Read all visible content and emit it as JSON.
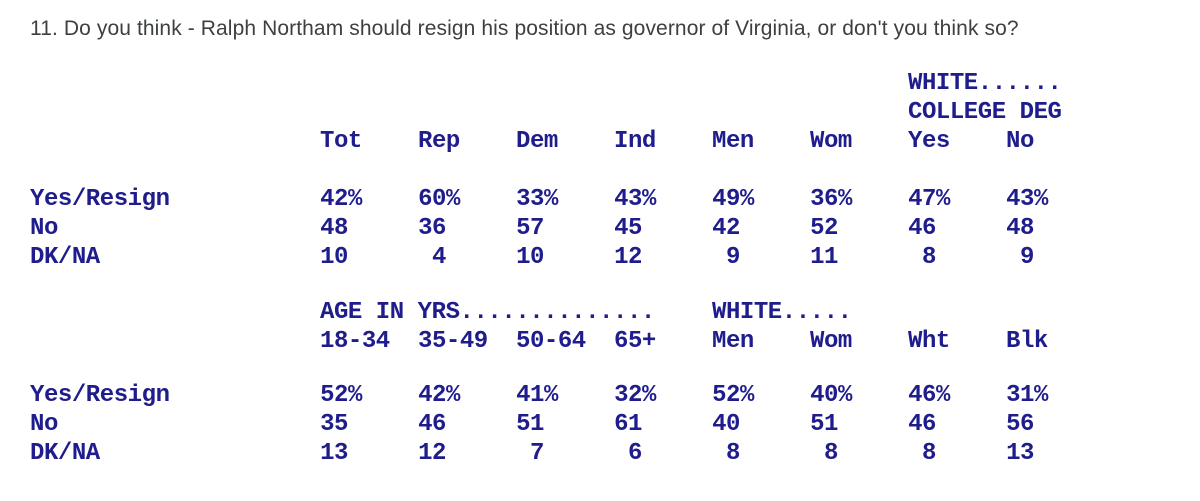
{
  "title": "11. Do you think - Ralph Northam should resign his position as governor of Virginia, or don't you think so?",
  "colors": {
    "table_text": "#1f1c8c",
    "title_text": "#3d4043",
    "background": "#ffffff"
  },
  "blocks": [
    {
      "group_headers": [
        {
          "text": "WHITE......",
          "col": 6,
          "line": 0
        },
        {
          "text": "COLLEGE DEG",
          "col": 6,
          "line": 1
        }
      ],
      "column_headers": [
        "Tot",
        "Rep",
        "Dem",
        "Ind",
        "Men",
        "Wom",
        "Yes",
        "No"
      ],
      "rows": [
        {
          "label": "Yes/Resign",
          "values": [
            "42%",
            "60%",
            "33%",
            "43%",
            "49%",
            "36%",
            "47%",
            "43%"
          ]
        },
        {
          "label": "No",
          "values": [
            "48",
            "36",
            "57",
            "45",
            "42",
            "52",
            "46",
            "48"
          ]
        },
        {
          "label": "DK/NA",
          "values": [
            "10",
            "4",
            "10",
            "12",
            "9",
            "11",
            "8",
            "9"
          ]
        }
      ]
    },
    {
      "group_headers": [
        {
          "text": "AGE IN YRS..............",
          "col": 0,
          "line": 0
        },
        {
          "text": "WHITE.....",
          "col": 4,
          "line": 0
        }
      ],
      "column_headers": [
        "18-34",
        "35-49",
        "50-64",
        "65+",
        "Men",
        "Wom",
        "Wht",
        "Blk"
      ],
      "rows": [
        {
          "label": "Yes/Resign",
          "values": [
            "52%",
            "42%",
            "41%",
            "32%",
            "52%",
            "40%",
            "46%",
            "31%"
          ]
        },
        {
          "label": "No",
          "values": [
            "35",
            "46",
            "51",
            "61",
            "40",
            "51",
            "46",
            "56"
          ]
        },
        {
          "label": "DK/NA",
          "values": [
            "13",
            "12",
            "7",
            "6",
            "8",
            "8",
            "8",
            "13"
          ]
        }
      ]
    }
  ]
}
